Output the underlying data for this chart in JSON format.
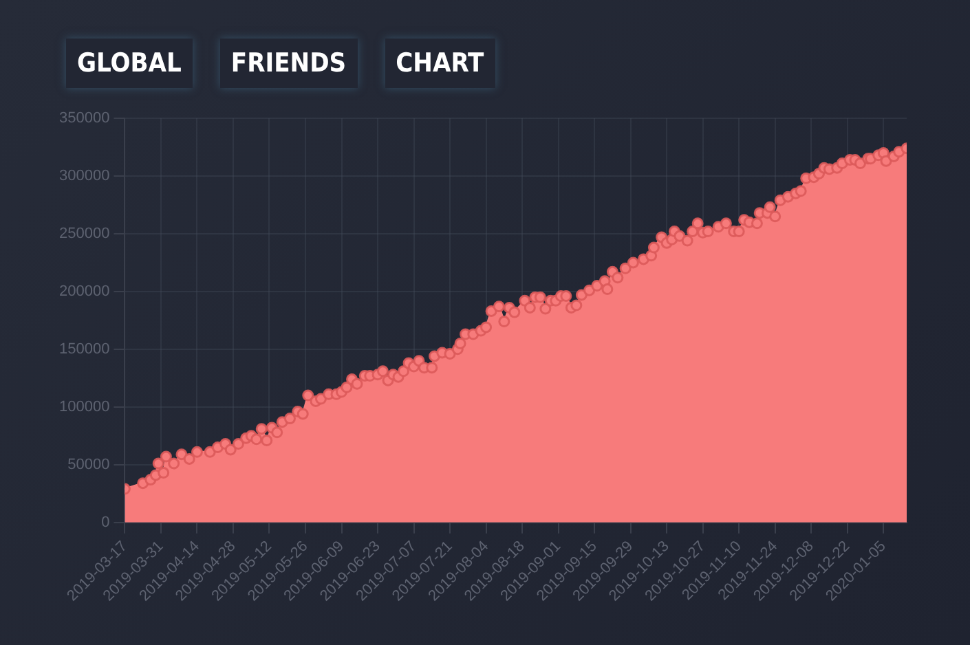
{
  "chart_data": {
    "type": "area",
    "title": "GLOBAL FRIENDS CHART",
    "x": [
      "2019-03-17",
      "2019-03-24",
      "2019-03-27",
      "2019-03-29",
      "2019-03-30",
      "2019-04-01",
      "2019-04-02",
      "2019-04-05",
      "2019-04-08",
      "2019-04-11",
      "2019-04-14",
      "2019-04-19",
      "2019-04-22",
      "2019-04-25",
      "2019-04-27",
      "2019-04-30",
      "2019-05-03",
      "2019-05-05",
      "2019-05-07",
      "2019-05-09",
      "2019-05-11",
      "2019-05-13",
      "2019-05-15",
      "2019-05-17",
      "2019-05-20",
      "2019-05-23",
      "2019-05-25",
      "2019-05-27",
      "2019-05-30",
      "2019-06-01",
      "2019-06-04",
      "2019-06-07",
      "2019-06-09",
      "2019-06-11",
      "2019-06-13",
      "2019-06-15",
      "2019-06-18",
      "2019-06-20",
      "2019-06-23",
      "2019-06-25",
      "2019-06-27",
      "2019-06-29",
      "2019-07-01",
      "2019-07-03",
      "2019-07-05",
      "2019-07-07",
      "2019-07-09",
      "2019-07-11",
      "2019-07-14",
      "2019-07-15",
      "2019-07-18",
      "2019-07-21",
      "2019-07-24",
      "2019-07-25",
      "2019-07-27",
      "2019-07-30",
      "2019-08-02",
      "2019-08-04",
      "2019-08-06",
      "2019-08-09",
      "2019-08-11",
      "2019-08-13",
      "2019-08-15",
      "2019-08-19",
      "2019-08-21",
      "2019-08-23",
      "2019-08-25",
      "2019-08-27",
      "2019-08-29",
      "2019-08-31",
      "2019-09-02",
      "2019-09-04",
      "2019-09-06",
      "2019-09-08",
      "2019-09-10",
      "2019-09-13",
      "2019-09-16",
      "2019-09-19",
      "2019-09-20",
      "2019-09-22",
      "2019-09-24",
      "2019-09-27",
      "2019-09-30",
      "2019-10-04",
      "2019-10-07",
      "2019-10-08",
      "2019-10-11",
      "2019-10-13",
      "2019-10-15",
      "2019-10-16",
      "2019-10-18",
      "2019-10-21",
      "2019-10-23",
      "2019-10-25",
      "2019-10-27",
      "2019-10-29",
      "2019-11-02",
      "2019-11-05",
      "2019-11-08",
      "2019-11-10",
      "2019-11-12",
      "2019-11-14",
      "2019-11-17",
      "2019-11-18",
      "2019-11-21",
      "2019-11-22",
      "2019-11-24",
      "2019-11-26",
      "2019-11-29",
      "2019-12-02",
      "2019-12-04",
      "2019-12-06",
      "2019-12-09",
      "2019-12-11",
      "2019-12-13",
      "2019-12-15",
      "2019-12-18",
      "2019-12-20",
      "2019-12-23",
      "2019-12-25",
      "2019-12-27",
      "2019-12-30",
      "2019-12-31",
      "2020-01-03",
      "2020-01-05",
      "2020-01-06",
      "2020-01-09",
      "2020-01-11",
      "2020-01-14"
    ],
    "series": [
      {
        "color": "#f77b7b",
        "values": [
          29000,
          34000,
          37000,
          41000,
          51000,
          43000,
          57000,
          51000,
          59000,
          55000,
          61000,
          61000,
          65000,
          68000,
          63000,
          68000,
          73000,
          75000,
          72000,
          81000,
          71000,
          82000,
          78000,
          87000,
          90000,
          96000,
          94000,
          110000,
          105000,
          107000,
          111000,
          111000,
          113000,
          117000,
          124000,
          120000,
          127000,
          127000,
          128000,
          131000,
          123000,
          128000,
          126000,
          131000,
          138000,
          135000,
          140000,
          134000,
          134000,
          144000,
          147000,
          146000,
          150000,
          155000,
          163000,
          163000,
          166000,
          169000,
          183000,
          187000,
          174000,
          186000,
          182000,
          192000,
          186000,
          195000,
          195000,
          185000,
          192000,
          192000,
          196000,
          196000,
          186000,
          188000,
          197000,
          201000,
          205000,
          209000,
          202000,
          217000,
          212000,
          220000,
          225000,
          228000,
          231000,
          238000,
          247000,
          242000,
          245000,
          252000,
          248000,
          244000,
          252000,
          259000,
          251000,
          252000,
          256000,
          259000,
          252000,
          252000,
          262000,
          260000,
          259000,
          268000,
          268000,
          273000,
          265000,
          279000,
          282000,
          285000,
          287000,
          298000,
          299000,
          302000,
          307000,
          306000,
          307000,
          311000,
          314000,
          314000,
          311000,
          315000,
          315000,
          318000,
          320000,
          313000,
          317000,
          321000,
          324000
        ]
      }
    ],
    "xlim": [
      "2019-03-17",
      "2020-01-14"
    ],
    "xticks": [
      "2019-03-17",
      "2019-03-31",
      "2019-04-14",
      "2019-04-28",
      "2019-05-12",
      "2019-05-26",
      "2019-06-09",
      "2019-06-23",
      "2019-07-07",
      "2019-07-21",
      "2019-08-04",
      "2019-08-18",
      "2019-09-01",
      "2019-09-15",
      "2019-09-29",
      "2019-10-13",
      "2019-10-27",
      "2019-11-10",
      "2019-11-24",
      "2019-12-08",
      "2019-12-22",
      "2020-01-05"
    ],
    "ylim": [
      0,
      350000
    ],
    "yticks": [
      0,
      50000,
      100000,
      150000,
      200000,
      250000,
      300000,
      350000
    ],
    "grid": true,
    "legend": false,
    "marker": "circle",
    "line_style": "solid"
  }
}
